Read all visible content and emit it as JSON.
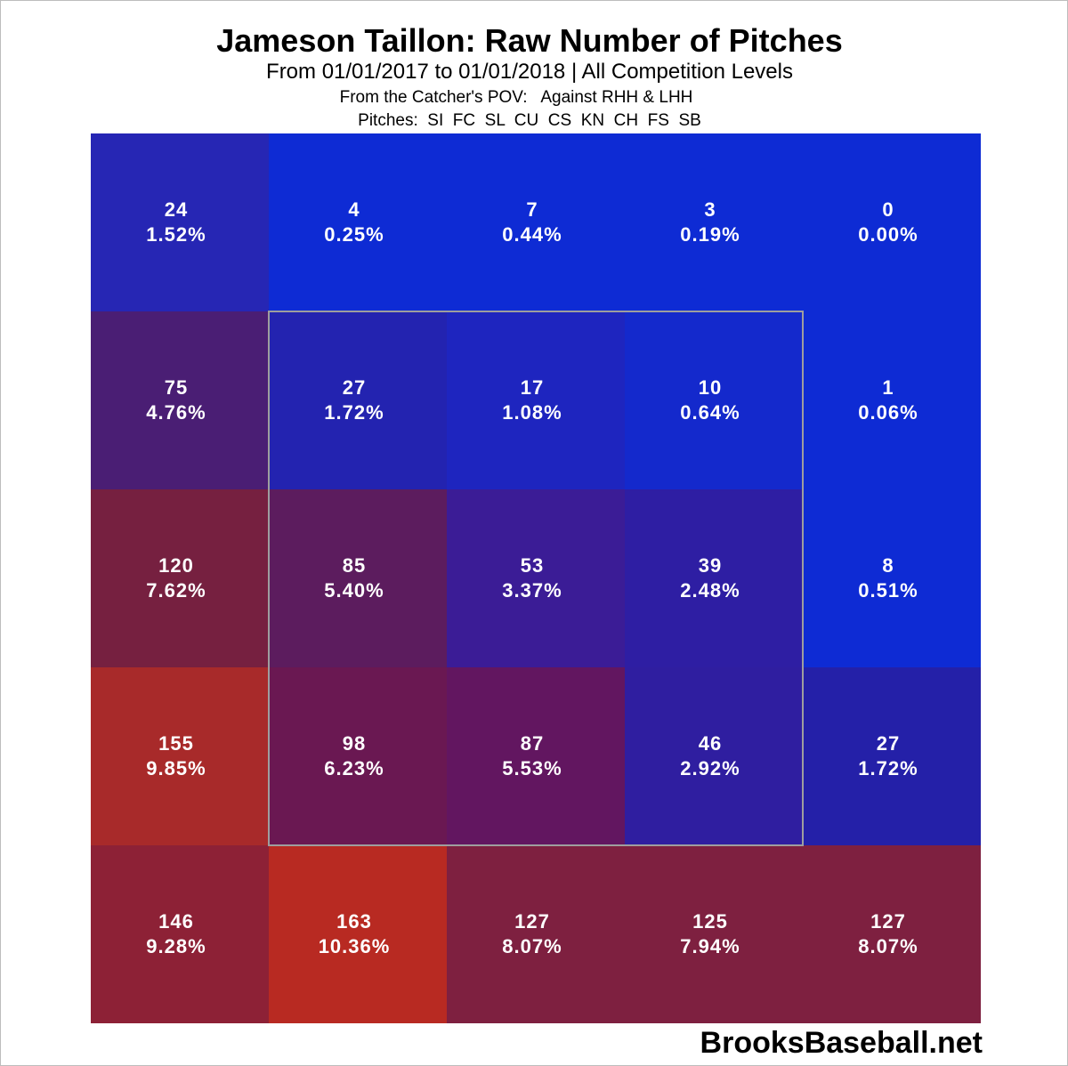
{
  "chart_data": {
    "type": "heatmap",
    "title": "Jameson Taillon: Raw Number of Pitches",
    "subtitle": "From 01/01/2017 to 01/01/2018 | All Competition Levels",
    "perspective": "From the Catcher's POV:   Against RHH & LHH",
    "pitches_label": "Pitches:  SI  FC  SL  CU  CS  KN  CH  FS  SB",
    "rows": 5,
    "cols": 5,
    "strike_zone": {
      "row_start": 1,
      "row_end": 3,
      "col_start": 1,
      "col_end": 3
    },
    "strike_zone_color": "#9e9e9e",
    "cells": [
      [
        {
          "count": "24",
          "pct": "1.52%",
          "color": "#2626b4"
        },
        {
          "count": "4",
          "pct": "0.25%",
          "color": "#0e2bd4"
        },
        {
          "count": "7",
          "pct": "0.44%",
          "color": "#0e2bd4"
        },
        {
          "count": "3",
          "pct": "0.19%",
          "color": "#0e2bd4"
        },
        {
          "count": "0",
          "pct": "0.00%",
          "color": "#0e2bd4"
        }
      ],
      [
        {
          "count": "75",
          "pct": "4.76%",
          "color": "#4a1e74"
        },
        {
          "count": "27",
          "pct": "1.72%",
          "color": "#2323b0"
        },
        {
          "count": "17",
          "pct": "1.08%",
          "color": "#1e25bf"
        },
        {
          "count": "10",
          "pct": "0.64%",
          "color": "#1429cc"
        },
        {
          "count": "1",
          "pct": "0.06%",
          "color": "#0e2bd4"
        }
      ],
      [
        {
          "count": "120",
          "pct": "7.62%",
          "color": "#762040"
        },
        {
          "count": "85",
          "pct": "5.40%",
          "color": "#5c1c5e"
        },
        {
          "count": "53",
          "pct": "3.37%",
          "color": "#3b1c96"
        },
        {
          "count": "39",
          "pct": "2.48%",
          "color": "#2e1ea3"
        },
        {
          "count": "8",
          "pct": "0.51%",
          "color": "#0e2bd4"
        }
      ],
      [
        {
          "count": "155",
          "pct": "9.85%",
          "color": "#a82a2a"
        },
        {
          "count": "98",
          "pct": "6.23%",
          "color": "#6a1852"
        },
        {
          "count": "87",
          "pct": "5.53%",
          "color": "#621660"
        },
        {
          "count": "46",
          "pct": "2.92%",
          "color": "#2f1ea0"
        },
        {
          "count": "27",
          "pct": "1.72%",
          "color": "#2420a8"
        }
      ],
      [
        {
          "count": "146",
          "pct": "9.28%",
          "color": "#8d2136"
        },
        {
          "count": "163",
          "pct": "10.36%",
          "color": "#b82a22"
        },
        {
          "count": "127",
          "pct": "8.07%",
          "color": "#7e2040"
        },
        {
          "count": "125",
          "pct": "7.94%",
          "color": "#7e2040"
        },
        {
          "count": "127",
          "pct": "8.07%",
          "color": "#7e2040"
        }
      ]
    ]
  },
  "watermark": "BrooksBaseball.net"
}
